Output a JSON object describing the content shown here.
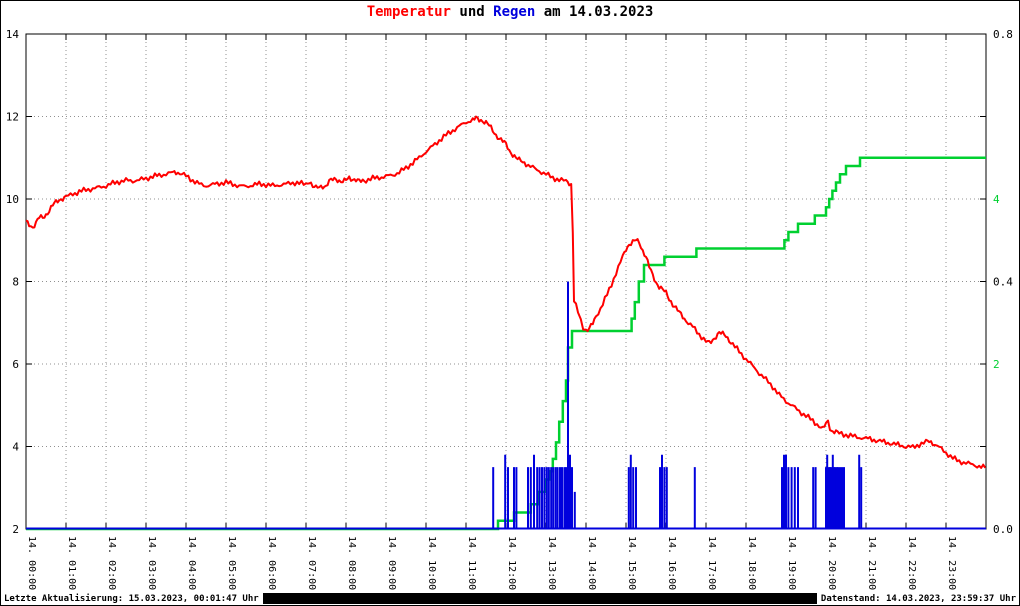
{
  "title": {
    "part_temp": "Temperatur",
    "part_und": " und ",
    "part_regen": "Regen",
    "part_date": " am 14.03.2023"
  },
  "footer": {
    "left": "Letzte Aktualisierung: 15.03.2023, 00:01:47 Uhr",
    "right": "Datenstand: 14.03.2023, 23:59:37 Uhr"
  },
  "colors": {
    "temperature": "#ff0000",
    "rain_rate": "#0000dd",
    "rain_sum": "#00d030",
    "grid": "#909090",
    "axis": "#000000"
  },
  "chart_data": {
    "type": [
      "line",
      "bar"
    ],
    "title": "Temperatur und Regen am 14.03.2023",
    "xlim_hours": [
      0,
      24
    ],
    "ylim_left_temperature_C": [
      2,
      14
    ],
    "ylim_right_rain_mm": [
      0,
      0.8
    ],
    "ylim_right_rainsum_mm": [
      0,
      6
    ],
    "grid": "dashed",
    "x_tick_labels": [
      "14. 00:00",
      "14. 01:00",
      "14. 02:00",
      "14. 03:00",
      "14. 04:00",
      "14. 05:00",
      "14. 06:00",
      "14. 07:00",
      "14. 08:00",
      "14. 09:00",
      "14. 10:00",
      "14. 11:00",
      "14. 12:00",
      "14. 13:00",
      "14. 14:00",
      "14. 15:00",
      "14. 16:00",
      "14. 17:00",
      "14. 18:00",
      "14. 19:00",
      "14. 20:00",
      "14. 21:00",
      "14. 22:00",
      "14. 23:00"
    ],
    "y_left_ticks": [
      {
        "v": 2,
        "label": "2"
      },
      {
        "v": 4,
        "label": "4"
      },
      {
        "v": 6,
        "label": "6"
      },
      {
        "v": 8,
        "label": "8"
      },
      {
        "v": 10,
        "label": "10"
      },
      {
        "v": 12,
        "label": "12"
      },
      {
        "v": 14,
        "label": "14"
      }
    ],
    "y_rain_ticks": [
      {
        "v": 0.0,
        "label": "0.0"
      },
      {
        "v": 0.4,
        "label": "0.4"
      },
      {
        "v": 0.8,
        "label": "0.8"
      }
    ],
    "y_sum_ticks": [
      {
        "v": 2,
        "label": "2"
      },
      {
        "v": 4,
        "label": "4"
      }
    ],
    "series": {
      "temperature": [
        [
          0.0,
          9.45
        ],
        [
          0.08,
          9.38
        ],
        [
          0.17,
          9.32
        ],
        [
          0.25,
          9.42
        ],
        [
          0.33,
          9.55
        ],
        [
          0.42,
          9.55
        ],
        [
          0.5,
          9.62
        ],
        [
          0.58,
          9.72
        ],
        [
          0.67,
          9.85
        ],
        [
          0.75,
          9.92
        ],
        [
          0.83,
          9.98
        ],
        [
          0.92,
          10.02
        ],
        [
          1.0,
          10.05
        ],
        [
          1.17,
          10.12
        ],
        [
          1.33,
          10.18
        ],
        [
          1.5,
          10.22
        ],
        [
          1.67,
          10.25
        ],
        [
          1.83,
          10.28
        ],
        [
          2.0,
          10.32
        ],
        [
          2.17,
          10.38
        ],
        [
          2.33,
          10.42
        ],
        [
          2.5,
          10.45
        ],
        [
          2.67,
          10.44
        ],
        [
          2.83,
          10.46
        ],
        [
          3.0,
          10.5
        ],
        [
          3.17,
          10.54
        ],
        [
          3.33,
          10.58
        ],
        [
          3.5,
          10.6
        ],
        [
          3.67,
          10.64
        ],
        [
          3.75,
          10.66
        ],
        [
          3.9,
          10.6
        ],
        [
          4.0,
          10.56
        ],
        [
          4.17,
          10.45
        ],
        [
          4.33,
          10.36
        ],
        [
          4.5,
          10.32
        ],
        [
          4.67,
          10.35
        ],
        [
          4.83,
          10.38
        ],
        [
          5.0,
          10.4
        ],
        [
          5.17,
          10.36
        ],
        [
          5.33,
          10.32
        ],
        [
          5.5,
          10.3
        ],
        [
          5.67,
          10.34
        ],
        [
          5.83,
          10.36
        ],
        [
          6.0,
          10.35
        ],
        [
          6.17,
          10.32
        ],
        [
          6.33,
          10.34
        ],
        [
          6.5,
          10.36
        ],
        [
          6.67,
          10.4
        ],
        [
          6.83,
          10.38
        ],
        [
          7.0,
          10.36
        ],
        [
          7.08,
          10.44
        ],
        [
          7.17,
          10.3
        ],
        [
          7.25,
          10.26
        ],
        [
          7.33,
          10.3
        ],
        [
          7.42,
          10.32
        ],
        [
          7.5,
          10.3
        ],
        [
          7.58,
          10.42
        ],
        [
          7.67,
          10.48
        ],
        [
          7.75,
          10.5
        ],
        [
          7.83,
          10.44
        ],
        [
          7.92,
          10.4
        ],
        [
          8.0,
          10.46
        ],
        [
          8.08,
          10.52
        ],
        [
          8.17,
          10.48
        ],
        [
          8.25,
          10.46
        ],
        [
          8.33,
          10.42
        ],
        [
          8.42,
          10.44
        ],
        [
          8.5,
          10.46
        ],
        [
          8.67,
          10.5
        ],
        [
          8.83,
          10.52
        ],
        [
          9.0,
          10.55
        ],
        [
          9.17,
          10.58
        ],
        [
          9.33,
          10.65
        ],
        [
          9.5,
          10.75
        ],
        [
          9.67,
          10.88
        ],
        [
          9.83,
          11.0
        ],
        [
          10.0,
          11.15
        ],
        [
          10.17,
          11.28
        ],
        [
          10.33,
          11.42
        ],
        [
          10.5,
          11.55
        ],
        [
          10.67,
          11.66
        ],
        [
          10.83,
          11.76
        ],
        [
          11.0,
          11.86
        ],
        [
          11.17,
          11.92
        ],
        [
          11.25,
          11.95
        ],
        [
          11.33,
          11.92
        ],
        [
          11.42,
          11.9
        ],
        [
          11.5,
          11.86
        ],
        [
          11.58,
          11.78
        ],
        [
          11.67,
          11.65
        ],
        [
          11.75,
          11.55
        ],
        [
          11.83,
          11.48
        ],
        [
          11.92,
          11.4
        ],
        [
          12.0,
          11.32
        ],
        [
          12.08,
          11.18
        ],
        [
          12.17,
          11.08
        ],
        [
          12.25,
          11.0
        ],
        [
          12.33,
          10.94
        ],
        [
          12.42,
          10.9
        ],
        [
          12.5,
          10.85
        ],
        [
          12.67,
          10.76
        ],
        [
          12.83,
          10.68
        ],
        [
          13.0,
          10.6
        ],
        [
          13.17,
          10.52
        ],
        [
          13.33,
          10.46
        ],
        [
          13.5,
          10.44
        ],
        [
          13.58,
          10.4
        ],
        [
          13.63,
          10.35
        ],
        [
          13.67,
          9.2
        ],
        [
          13.7,
          7.55
        ],
        [
          13.75,
          7.4
        ],
        [
          13.8,
          7.25
        ],
        [
          13.87,
          7.05
        ],
        [
          13.93,
          6.9
        ],
        [
          14.0,
          6.82
        ],
        [
          14.08,
          6.85
        ],
        [
          14.17,
          6.98
        ],
        [
          14.25,
          7.15
        ],
        [
          14.42,
          7.45
        ],
        [
          14.58,
          7.8
        ],
        [
          14.75,
          8.2
        ],
        [
          14.92,
          8.6
        ],
        [
          15.0,
          8.8
        ],
        [
          15.08,
          8.9
        ],
        [
          15.17,
          8.95
        ],
        [
          15.25,
          9.0
        ],
        [
          15.33,
          8.95
        ],
        [
          15.42,
          8.75
        ],
        [
          15.5,
          8.6
        ],
        [
          15.58,
          8.35
        ],
        [
          15.67,
          8.15
        ],
        [
          15.75,
          7.98
        ],
        [
          15.83,
          7.88
        ],
        [
          15.92,
          7.8
        ],
        [
          16.0,
          7.72
        ],
        [
          16.08,
          7.58
        ],
        [
          16.17,
          7.45
        ],
        [
          16.25,
          7.35
        ],
        [
          16.33,
          7.25
        ],
        [
          16.42,
          7.15
        ],
        [
          16.5,
          7.05
        ],
        [
          16.67,
          6.9
        ],
        [
          16.83,
          6.72
        ],
        [
          17.0,
          6.55
        ],
        [
          17.08,
          6.5
        ],
        [
          17.17,
          6.58
        ],
        [
          17.25,
          6.68
        ],
        [
          17.33,
          6.76
        ],
        [
          17.42,
          6.72
        ],
        [
          17.5,
          6.68
        ],
        [
          17.58,
          6.58
        ],
        [
          17.67,
          6.48
        ],
        [
          17.83,
          6.3
        ],
        [
          18.0,
          6.12
        ],
        [
          18.17,
          5.95
        ],
        [
          18.33,
          5.78
        ],
        [
          18.5,
          5.62
        ],
        [
          18.67,
          5.45
        ],
        [
          18.83,
          5.25
        ],
        [
          19.0,
          5.1
        ],
        [
          19.17,
          4.98
        ],
        [
          19.33,
          4.85
        ],
        [
          19.5,
          4.75
        ],
        [
          19.67,
          4.62
        ],
        [
          19.83,
          4.5
        ],
        [
          19.92,
          4.42
        ],
        [
          20.0,
          4.55
        ],
        [
          20.05,
          4.62
        ],
        [
          20.1,
          4.45
        ],
        [
          20.17,
          4.38
        ],
        [
          20.25,
          4.35
        ],
        [
          20.33,
          4.32
        ],
        [
          20.5,
          4.28
        ],
        [
          20.67,
          4.25
        ],
        [
          20.83,
          4.22
        ],
        [
          21.0,
          4.2
        ],
        [
          21.25,
          4.15
        ],
        [
          21.5,
          4.1
        ],
        [
          21.75,
          4.05
        ],
        [
          22.0,
          4.0
        ],
        [
          22.17,
          3.98
        ],
        [
          22.33,
          4.05
        ],
        [
          22.5,
          4.1
        ],
        [
          22.58,
          4.14
        ],
        [
          22.67,
          4.08
        ],
        [
          22.83,
          3.98
        ],
        [
          23.0,
          3.85
        ],
        [
          23.17,
          3.72
        ],
        [
          23.33,
          3.64
        ],
        [
          23.5,
          3.6
        ],
        [
          23.67,
          3.56
        ],
        [
          23.83,
          3.52
        ],
        [
          23.98,
          3.48
        ]
      ],
      "rain_sum": [
        [
          0,
          0
        ],
        [
          11.78,
          0
        ],
        [
          11.8,
          0.1
        ],
        [
          12.18,
          0.1
        ],
        [
          12.2,
          0.2
        ],
        [
          12.6,
          0.2
        ],
        [
          12.62,
          0.3
        ],
        [
          12.8,
          0.3
        ],
        [
          12.83,
          0.45
        ],
        [
          12.96,
          0.45
        ],
        [
          13.0,
          0.6
        ],
        [
          13.08,
          0.7
        ],
        [
          13.17,
          0.85
        ],
        [
          13.25,
          1.05
        ],
        [
          13.33,
          1.3
        ],
        [
          13.42,
          1.55
        ],
        [
          13.5,
          1.8
        ],
        [
          13.55,
          2.2
        ],
        [
          13.65,
          2.4
        ],
        [
          15.08,
          2.4
        ],
        [
          15.14,
          2.55
        ],
        [
          15.22,
          2.75
        ],
        [
          15.32,
          3.0
        ],
        [
          15.45,
          3.2
        ],
        [
          15.9,
          3.2
        ],
        [
          15.96,
          3.3
        ],
        [
          16.72,
          3.3
        ],
        [
          16.76,
          3.4
        ],
        [
          18.9,
          3.4
        ],
        [
          18.96,
          3.5
        ],
        [
          19.06,
          3.6
        ],
        [
          19.3,
          3.7
        ],
        [
          19.72,
          3.8
        ],
        [
          20.0,
          3.9
        ],
        [
          20.08,
          4.0
        ],
        [
          20.16,
          4.1
        ],
        [
          20.25,
          4.2
        ],
        [
          20.35,
          4.3
        ],
        [
          20.5,
          4.4
        ],
        [
          20.85,
          4.5
        ],
        [
          24,
          4.5
        ]
      ],
      "rain_bars": [
        [
          11.68,
          0.1
        ],
        [
          11.98,
          0.12
        ],
        [
          12.05,
          0.1
        ],
        [
          12.2,
          0.1
        ],
        [
          12.26,
          0.1
        ],
        [
          12.55,
          0.1
        ],
        [
          12.62,
          0.1
        ],
        [
          12.7,
          0.12
        ],
        [
          12.78,
          0.1
        ],
        [
          12.84,
          0.1
        ],
        [
          12.9,
          0.1
        ],
        [
          12.96,
          0.1
        ],
        [
          13.02,
          0.1
        ],
        [
          13.07,
          0.1
        ],
        [
          13.13,
          0.1
        ],
        [
          13.18,
          0.1
        ],
        [
          13.24,
          0.1
        ],
        [
          13.29,
          0.1
        ],
        [
          13.35,
          0.1
        ],
        [
          13.4,
          0.1
        ],
        [
          13.46,
          0.1
        ],
        [
          13.5,
          0.1
        ],
        [
          13.55,
          0.4
        ],
        [
          13.6,
          0.12
        ],
        [
          13.65,
          0.1
        ],
        [
          13.72,
          0.06
        ],
        [
          15.07,
          0.1
        ],
        [
          15.12,
          0.12
        ],
        [
          15.18,
          0.1
        ],
        [
          15.25,
          0.1
        ],
        [
          15.85,
          0.1
        ],
        [
          15.9,
          0.12
        ],
        [
          15.96,
          0.1
        ],
        [
          16.02,
          0.1
        ],
        [
          16.72,
          0.1
        ],
        [
          18.9,
          0.1
        ],
        [
          18.95,
          0.12
        ],
        [
          19.0,
          0.12
        ],
        [
          19.06,
          0.1
        ],
        [
          19.14,
          0.1
        ],
        [
          19.22,
          0.1
        ],
        [
          19.3,
          0.1
        ],
        [
          19.68,
          0.1
        ],
        [
          19.74,
          0.1
        ],
        [
          20.0,
          0.1
        ],
        [
          20.03,
          0.12
        ],
        [
          20.07,
          0.1
        ],
        [
          20.1,
          0.1
        ],
        [
          20.13,
          0.1
        ],
        [
          20.17,
          0.12
        ],
        [
          20.2,
          0.1
        ],
        [
          20.23,
          0.1
        ],
        [
          20.27,
          0.1
        ],
        [
          20.3,
          0.1
        ],
        [
          20.35,
          0.1
        ],
        [
          20.4,
          0.1
        ],
        [
          20.45,
          0.1
        ],
        [
          20.83,
          0.12
        ],
        [
          20.88,
          0.1
        ]
      ]
    }
  }
}
